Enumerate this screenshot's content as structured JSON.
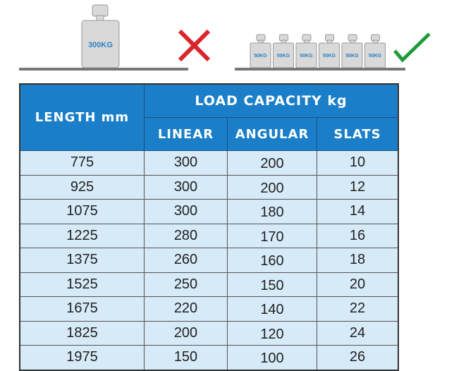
{
  "illustration": {
    "single_weight_label": "300KG",
    "small_weight_label": "50KG",
    "small_weight_count": 6,
    "wrong_icon": "red-x-icon",
    "right_icon": "green-check-icon",
    "colors": {
      "weight": "#d9d9d9",
      "label": "#2a7fc0",
      "x": "#d9262b",
      "check": "#1f9a3a",
      "base": "#777777"
    }
  },
  "table": {
    "length_header": "LENGTH mm",
    "group_header": "LOAD CAPACITY kg",
    "sub_headers": [
      "LINEAR",
      "ANGULAR",
      "SLATS"
    ],
    "rows": [
      [
        "775",
        "300",
        "200",
        "10"
      ],
      [
        "925",
        "300",
        "200",
        "12"
      ],
      [
        "1075",
        "300",
        "180",
        "14"
      ],
      [
        "1225",
        "280",
        "170",
        "16"
      ],
      [
        "1375",
        "260",
        "160",
        "18"
      ],
      [
        "1525",
        "250",
        "150",
        "20"
      ],
      [
        "1675",
        "220",
        "140",
        "22"
      ],
      [
        "1825",
        "200",
        "120",
        "24"
      ],
      [
        "1975",
        "150",
        "100",
        "26"
      ]
    ],
    "colors": {
      "header": "#1a7fc8",
      "body": "#d6eaf8"
    }
  }
}
